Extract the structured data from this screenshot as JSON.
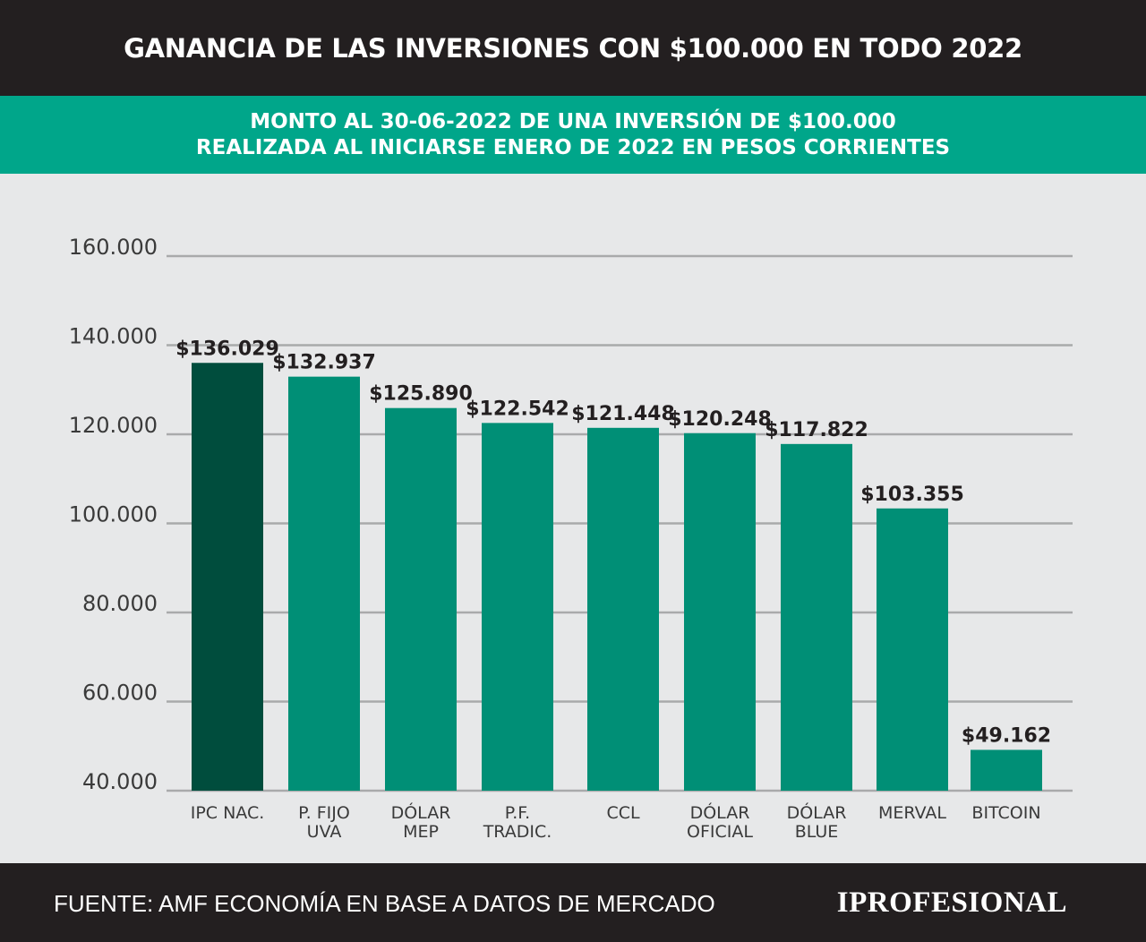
{
  "header": {
    "title": "GANANCIA DE LAS INVERSIONES CON $100.000 EN TODO 2022",
    "subtitle_line1": "MONTO AL 30-06-2022 DE UNA INVERSIÓN DE $100.000",
    "subtitle_line2": "REALIZADA AL INICIARSE ENERO DE 2022 EN PESOS CORRIENTES"
  },
  "footer": {
    "source": "FUENTE: AMF ECONOMÍA EN BASE A DATOS DE MERCADO",
    "logo": "IPROFESIONAL"
  },
  "colors": {
    "header_bg": "#231f20",
    "subheader_bg": "#00a68a",
    "bar": "#008f76",
    "bar_highlight": "#004d3d",
    "grid": "#a9aaab",
    "plot_bg": "#e7e8e9"
  },
  "chart_data": {
    "type": "bar",
    "categories": [
      [
        "IPC NAC."
      ],
      [
        "P. FIJO",
        "UVA"
      ],
      [
        "DÓLAR",
        "MEP"
      ],
      [
        "P.F.",
        "TRADIC."
      ],
      [
        "CCL"
      ],
      [
        "DÓLAR",
        "OFICIAL"
      ],
      [
        "DÓLAR",
        "BLUE"
      ],
      [
        "MERVAL"
      ],
      [
        "BITCOIN"
      ]
    ],
    "values": [
      136029,
      132937,
      125890,
      122542,
      121448,
      120248,
      117822,
      103355,
      49162
    ],
    "data_labels": [
      "$136.029",
      "$132.937",
      "$125.890",
      "$122.542",
      "$121.448",
      "$120.248",
      "$117.822",
      "$103.355",
      "$49.162"
    ],
    "highlight_index": 0,
    "ylim": [
      40000,
      160000
    ],
    "yticks": [
      40000,
      60000,
      80000,
      100000,
      120000,
      140000,
      160000
    ],
    "ytick_labels": [
      "40.000",
      "60.000",
      "80.000",
      "100.000",
      "120.000",
      "140.000",
      "160.000"
    ],
    "grid": true,
    "legend": "none"
  }
}
